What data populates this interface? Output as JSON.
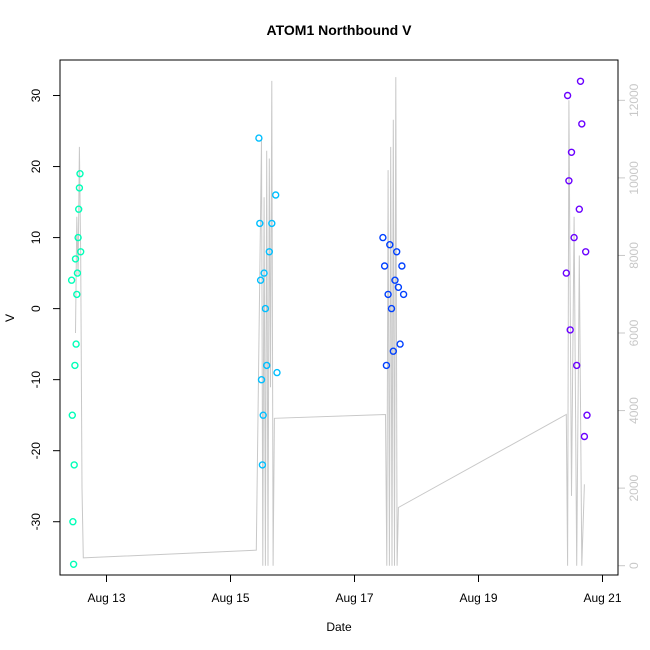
{
  "chart_data": {
    "type": "scatter",
    "title": "ATOM1 Northbound V",
    "xlabel": "Date",
    "ylabel": "V",
    "x_ticks": [
      "Aug 13",
      "Aug 15",
      "Aug 17",
      "Aug 19",
      "Aug 21"
    ],
    "y_ticks": [
      -30,
      -20,
      -10,
      0,
      10,
      20,
      30
    ],
    "y2_ticks": [
      0,
      2000,
      4000,
      6000,
      8000,
      10000,
      12000
    ],
    "xlim": [
      "2023-08-12T06:00",
      "2023-08-21T06:00"
    ],
    "ylim": [
      -37.5,
      35.0
    ],
    "y2lim": [
      -240,
      13040
    ],
    "grid": false,
    "legend": "none",
    "series": [
      {
        "color": "#00ffb8",
        "mode": "points",
        "points": [
          [
            "2023-08-12T10:30",
            4
          ],
          [
            "2023-08-12T10:45",
            -15
          ],
          [
            "2023-08-12T11:00",
            -30
          ],
          [
            "2023-08-12T11:15",
            -36
          ],
          [
            "2023-08-12T11:30",
            -22
          ],
          [
            "2023-08-12T11:45",
            -8
          ],
          [
            "2023-08-12T12:00",
            7
          ],
          [
            "2023-08-12T12:15",
            -5
          ],
          [
            "2023-08-12T12:30",
            2
          ],
          [
            "2023-08-12T12:45",
            5
          ],
          [
            "2023-08-12T13:00",
            10
          ],
          [
            "2023-08-12T13:15",
            14
          ],
          [
            "2023-08-12T13:30",
            17
          ],
          [
            "2023-08-12T13:45",
            19
          ],
          [
            "2023-08-12T14:00",
            8
          ]
        ]
      },
      {
        "color": "#00bfff",
        "mode": "points",
        "points": [
          [
            "2023-08-15T11:00",
            24
          ],
          [
            "2023-08-15T11:20",
            12
          ],
          [
            "2023-08-15T11:40",
            4
          ],
          [
            "2023-08-15T12:00",
            -10
          ],
          [
            "2023-08-15T12:20",
            -22
          ],
          [
            "2023-08-15T12:40",
            -15
          ],
          [
            "2023-08-15T13:00",
            5
          ],
          [
            "2023-08-15T13:30",
            0
          ],
          [
            "2023-08-15T14:00",
            -8
          ],
          [
            "2023-08-15T15:00",
            8
          ],
          [
            "2023-08-15T16:00",
            12
          ],
          [
            "2023-08-15T17:30",
            16
          ],
          [
            "2023-08-15T18:00",
            -9
          ]
        ]
      },
      {
        "color": "#0040ff",
        "mode": "points",
        "points": [
          [
            "2023-08-17T11:00",
            10
          ],
          [
            "2023-08-17T11:40",
            6
          ],
          [
            "2023-08-17T12:20",
            -8
          ],
          [
            "2023-08-17T13:00",
            2
          ],
          [
            "2023-08-17T13:40",
            9
          ],
          [
            "2023-08-17T14:20",
            0
          ],
          [
            "2023-08-17T15:00",
            -6
          ],
          [
            "2023-08-17T15:40",
            4
          ],
          [
            "2023-08-17T16:20",
            8
          ],
          [
            "2023-08-17T17:00",
            3
          ],
          [
            "2023-08-17T17:40",
            -5
          ],
          [
            "2023-08-17T18:20",
            6
          ],
          [
            "2023-08-17T19:00",
            2
          ]
        ]
      },
      {
        "color": "#6a00ff",
        "mode": "points",
        "points": [
          [
            "2023-08-20T10:00",
            5
          ],
          [
            "2023-08-20T10:30",
            30
          ],
          [
            "2023-08-20T11:00",
            18
          ],
          [
            "2023-08-20T11:30",
            -3
          ],
          [
            "2023-08-20T12:00",
            22
          ],
          [
            "2023-08-20T13:00",
            10
          ],
          [
            "2023-08-20T14:00",
            -8
          ],
          [
            "2023-08-20T15:00",
            14
          ],
          [
            "2023-08-20T15:30",
            32
          ],
          [
            "2023-08-20T16:00",
            26
          ],
          [
            "2023-08-20T17:00",
            -18
          ],
          [
            "2023-08-20T17:30",
            8
          ],
          [
            "2023-08-20T18:00",
            -15
          ]
        ]
      },
      {
        "axis": "right",
        "color": "#c8c8c8",
        "mode": "line",
        "points": [
          [
            "2023-08-12T12:00",
            6000
          ],
          [
            "2023-08-12T12:30",
            9000
          ],
          [
            "2023-08-12T13:00",
            7500
          ],
          [
            "2023-08-12T13:30",
            10800
          ],
          [
            "2023-08-12T14:00",
            8000
          ],
          [
            "2023-08-12T14:30",
            2000
          ],
          [
            "2023-08-12T15:00",
            200
          ],
          [
            "2023-08-15T10:00",
            400
          ],
          [
            "2023-08-15T12:00",
            11000
          ],
          [
            "2023-08-15T12:30",
            0
          ],
          [
            "2023-08-15T13:00",
            9500
          ],
          [
            "2023-08-15T13:30",
            0
          ],
          [
            "2023-08-15T14:00",
            10700
          ],
          [
            "2023-08-15T14:30",
            0
          ],
          [
            "2023-08-15T15:00",
            10500
          ],
          [
            "2023-08-15T15:30",
            4600
          ],
          [
            "2023-08-15T16:00",
            12500
          ],
          [
            "2023-08-15T16:30",
            0
          ],
          [
            "2023-08-15T17:00",
            3800
          ],
          [
            "2023-08-17T12:00",
            3900
          ],
          [
            "2023-08-17T12:30",
            0
          ],
          [
            "2023-08-17T13:00",
            10200
          ],
          [
            "2023-08-17T13:30",
            0
          ],
          [
            "2023-08-17T14:00",
            10800
          ],
          [
            "2023-08-17T14:30",
            0
          ],
          [
            "2023-08-17T15:00",
            11500
          ],
          [
            "2023-08-17T15:30",
            0
          ],
          [
            "2023-08-17T16:00",
            12600
          ],
          [
            "2023-08-17T16:30",
            0
          ],
          [
            "2023-08-17T17:00",
            1500
          ],
          [
            "2023-08-20T10:00",
            3900
          ],
          [
            "2023-08-20T10:30",
            0
          ],
          [
            "2023-08-20T11:00",
            12000
          ],
          [
            "2023-08-20T12:00",
            1800
          ],
          [
            "2023-08-20T13:00",
            9000
          ],
          [
            "2023-08-20T14:00",
            0
          ],
          [
            "2023-08-20T15:00",
            8000
          ],
          [
            "2023-08-20T16:00",
            0
          ],
          [
            "2023-08-20T17:00",
            2100
          ]
        ]
      }
    ]
  }
}
